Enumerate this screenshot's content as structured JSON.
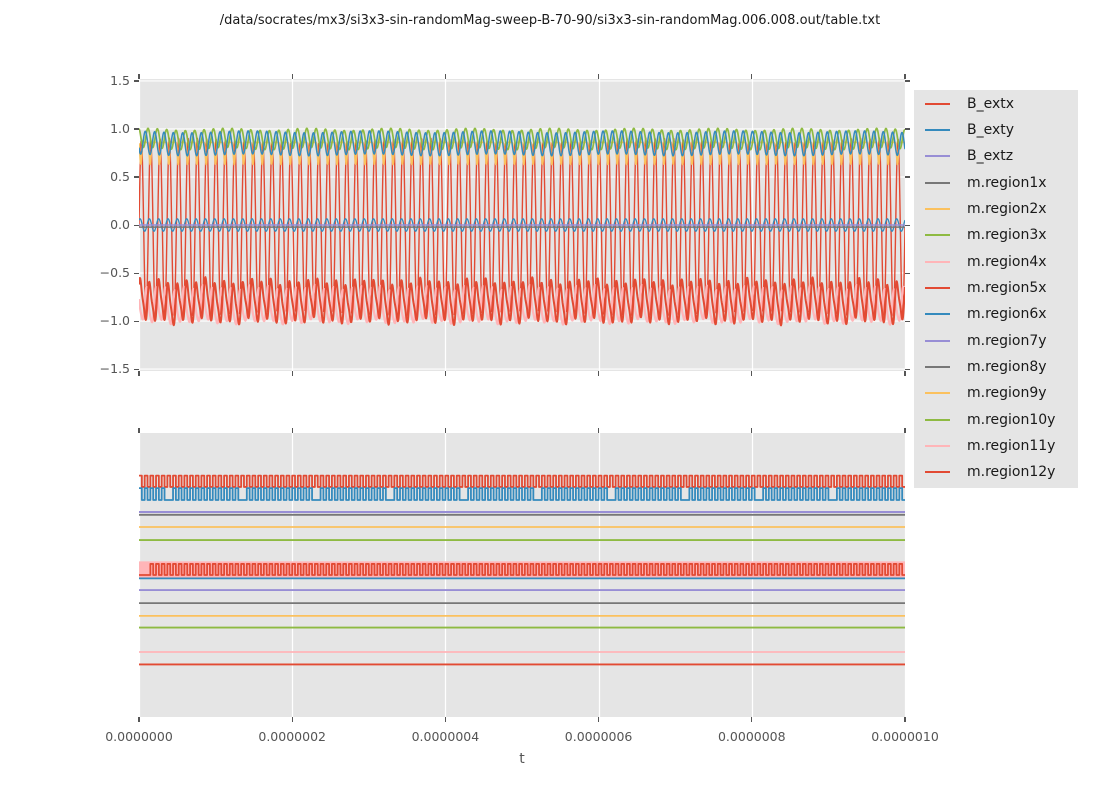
{
  "title": "/data/socrates/mx3/si3x3-sin-randomMag-sweep-B-70-90/si3x3-sin-randomMag.006.008.out/table.txt",
  "axes": {
    "xlabel": "t",
    "x_tick_labels": [
      "0.0000000",
      "0.0000002",
      "0.0000004",
      "0.0000006",
      "0.0000008",
      "0.0000010"
    ],
    "top_y_tick_labels": [
      "1.5",
      "1.0",
      "0.5",
      "0.0",
      "−0.5",
      "−1.0",
      "−1.5"
    ]
  },
  "colors": {
    "figure_bg": "#ffffff",
    "axes_bg": "#e5e5e5",
    "grid": "#ffffff",
    "tick": "#555555",
    "text": "#1a1a1a",
    "red": "#E24A33",
    "blue": "#348ABD",
    "purple": "#988ED5",
    "gray": "#777777",
    "orange": "#FBC15E",
    "green": "#8EBA42",
    "pink": "#FFB5B8"
  },
  "legend": {
    "entries": [
      {
        "label": "B_extx",
        "color": "#E24A33"
      },
      {
        "label": "B_exty",
        "color": "#348ABD"
      },
      {
        "label": "B_extz",
        "color": "#988ED5"
      },
      {
        "label": "m.region1x",
        "color": "#777777"
      },
      {
        "label": "m.region2x",
        "color": "#FBC15E"
      },
      {
        "label": "m.region3x",
        "color": "#8EBA42"
      },
      {
        "label": "m.region4x",
        "color": "#FFB5B8"
      },
      {
        "label": "m.region5x",
        "color": "#E24A33"
      },
      {
        "label": "m.region6x",
        "color": "#348ABD"
      },
      {
        "label": "m.region7y",
        "color": "#988ED5"
      },
      {
        "label": "m.region8y",
        "color": "#777777"
      },
      {
        "label": "m.region9y",
        "color": "#FBC15E"
      },
      {
        "label": "m.region10y",
        "color": "#8EBA42"
      },
      {
        "label": "m.region11y",
        "color": "#FFB5B8"
      },
      {
        "label": "m.region12y",
        "color": "#E24A33"
      }
    ]
  },
  "chart_data": {
    "type": "line",
    "title": "/data/socrates/mx3/si3x3-sin-randomMag-sweep-B-70-90/si3x3-sin-randomMag.006.008.out/table.txt",
    "xlabel": "t",
    "x_range": [
      0.0,
      1e-06
    ],
    "x_ticks": [
      0.0,
      2e-07,
      4e-07,
      6e-07,
      8e-07,
      1e-06
    ],
    "legend_position": "right outside",
    "subplots": [
      {
        "position": "top",
        "ylim": [
          -1.52,
          1.52
        ],
        "y_ticks": [
          1.5,
          1.0,
          0.5,
          0.0,
          -0.5,
          -1.0,
          -1.5
        ],
        "grid": "both",
        "series": [
          {
            "name": "B_extx",
            "color": "#E24A33",
            "kind": "sine",
            "offset": -0.02,
            "amp": 0.9,
            "am": 0.025,
            "freq": 82,
            "phase": 0.0,
            "lw": 1.4,
            "description": "high-frequency sine field sweep spanning about -0.95 to +0.92"
          },
          {
            "name": "B_exty",
            "color": "#348ABD",
            "kind": "sine",
            "offset": 0.0,
            "amp": 0.065,
            "freq": 82,
            "phase": 0.9,
            "lw": 1.3,
            "description": "small sine around 0, amplitude ~0.07"
          },
          {
            "name": "B_extz",
            "color": "#988ED5",
            "kind": "flat",
            "offset": 0.0,
            "lw": 1.6,
            "description": "constant 0"
          },
          {
            "name": "m.region1x",
            "color": "#777777",
            "kind": "flat",
            "offset": -0.022,
            "lw": 1.5,
            "description": "constant ~0"
          },
          {
            "name": "m.region2x",
            "color": "#FBC15E",
            "kind": "spike",
            "base": 0.86,
            "depth": 0.23,
            "freq": 82,
            "phase": 0.35,
            "sharp": 3,
            "lw": 1.7,
            "description": "oscillates near 0.86 with sharp dips to ~0.63"
          },
          {
            "name": "m.region3x",
            "color": "#8EBA42",
            "kind": "sine2",
            "offset": 0.895,
            "amp": 0.1,
            "freq": 82,
            "phase": 1.8,
            "amp2": 0.012,
            "freq2": 9.4,
            "lw": 1.7,
            "description": "dense oscillation between ~0.79 and ~1.0"
          },
          {
            "name": "m.region4x",
            "color": "#FFB5B8",
            "kind": "noisy",
            "offset": -0.85,
            "amp": 0.17,
            "freq": 82,
            "phase": 2.6,
            "h2": 0.2,
            "jit": 0.018,
            "lw": 2.2,
            "description": "noisy band between ~-0.66 and ~-1.02"
          },
          {
            "name": "m.region5x",
            "color": "#E24A33",
            "kind": "noisy",
            "offset": -0.8,
            "amp": 0.19,
            "freq": 82,
            "phase": 0.6,
            "h2": 0.25,
            "jit": 0.025,
            "lw": 2.0,
            "description": "dense noisy band between ~-0.6 and ~-1.0"
          },
          {
            "name": "m.region6x",
            "color": "#348ABD",
            "kind": "sine2",
            "offset": 0.85,
            "amp": 0.12,
            "freq": 82,
            "phase": 3.6,
            "amp2": 0.01,
            "freq2": 6.3,
            "lw": 1.5,
            "description": "oscillation between ~0.73 and ~0.97"
          }
        ]
      },
      {
        "position": "bottom",
        "y_axis_labels": false,
        "grid": "x",
        "note": "levels given as fraction of plot height from top; no y tick labels shown",
        "series": [
          {
            "name": "B_extx",
            "color": "#E24A33",
            "kind": "square",
            "hi": 0.15,
            "lo": 0.19,
            "freq": 135,
            "lw": 1.8
          },
          {
            "name": "B_exty",
            "color": "#348ABD",
            "kind": "square",
            "hi": 0.194,
            "lo": 0.236,
            "freq": 135,
            "lw": 1.8,
            "drop_every": 13,
            "drop_at": 5
          },
          {
            "name": "B_extz",
            "color": "#988ED5",
            "kind": "hline",
            "level": 0.278,
            "lw": 2.0
          },
          {
            "name": "m.region1x",
            "color": "#777777",
            "kind": "hline",
            "level": 0.288,
            "lw": 1.8
          },
          {
            "name": "m.region2x",
            "color": "#FBC15E",
            "kind": "hline",
            "level": 0.331,
            "lw": 1.8
          },
          {
            "name": "m.region3x",
            "color": "#8EBA42",
            "kind": "hline",
            "level": 0.377,
            "lw": 1.8
          },
          {
            "name": "m.region4x",
            "color": "#FFB5B8",
            "kind": "band",
            "from": 0.452,
            "to": 0.509
          },
          {
            "name": "m.region5x",
            "color": "#E24A33",
            "kind": "square",
            "hi": 0.461,
            "lo": 0.5,
            "freq": 135,
            "lw": 1.8,
            "start_lo_until": 0.014
          },
          {
            "name": "m.region6x",
            "color": "#348ABD",
            "kind": "hline",
            "level": 0.512,
            "lw": 1.8
          },
          {
            "name": "m.region7y",
            "color": "#988ED5",
            "kind": "hline",
            "level": 0.553,
            "lw": 1.8
          },
          {
            "name": "m.region8y",
            "color": "#777777",
            "kind": "hline",
            "level": 0.599,
            "lw": 1.8
          },
          {
            "name": "m.region9y",
            "color": "#FBC15E",
            "kind": "hline",
            "level": 0.644,
            "lw": 1.8
          },
          {
            "name": "m.region10y",
            "color": "#8EBA42",
            "kind": "hline",
            "level": 0.685,
            "lw": 1.8
          },
          {
            "name": "m.region11y",
            "color": "#FFB5B8",
            "kind": "hline",
            "level": 0.771,
            "lw": 1.8
          },
          {
            "name": "m.region12y",
            "color": "#E24A33",
            "kind": "hline",
            "level": 0.815,
            "lw": 1.8
          }
        ]
      }
    ]
  }
}
